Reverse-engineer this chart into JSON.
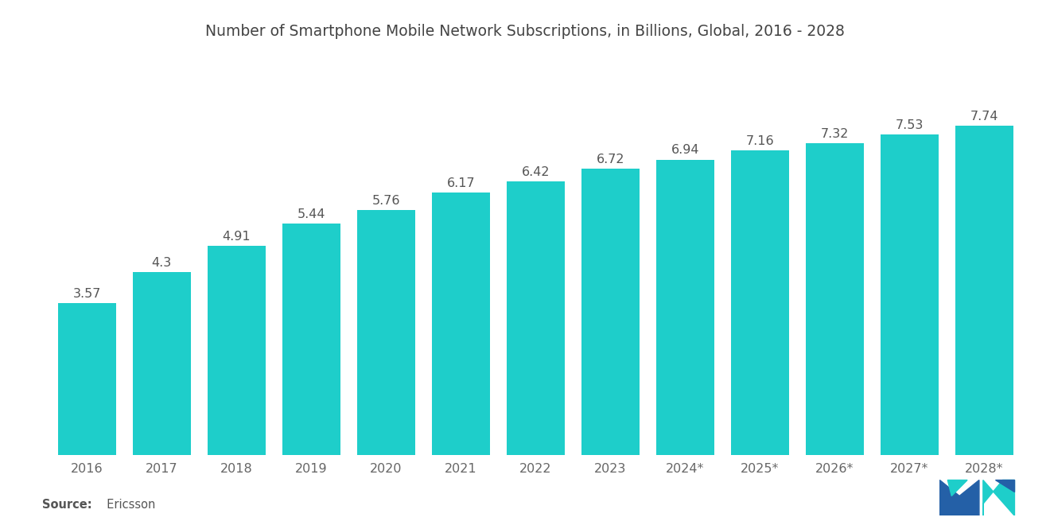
{
  "title": "Number of Smartphone Mobile Network Subscriptions, in Billions, Global, 2016 - 2028",
  "categories": [
    "2016",
    "2017",
    "2018",
    "2019",
    "2020",
    "2021",
    "2022",
    "2023",
    "2024*",
    "2025*",
    "2026*",
    "2027*",
    "2028*"
  ],
  "values": [
    3.57,
    4.3,
    4.91,
    5.44,
    5.76,
    6.17,
    6.42,
    6.72,
    6.94,
    7.16,
    7.32,
    7.53,
    7.74
  ],
  "bar_color": "#1ECECA",
  "background_color": "#FFFFFF",
  "title_fontsize": 13.5,
  "label_fontsize": 11.5,
  "tick_fontsize": 11.5,
  "source_bold": "Source:",
  "source_normal": "  Ericsson",
  "ylim": [
    0,
    9.2
  ],
  "bar_width": 0.78
}
